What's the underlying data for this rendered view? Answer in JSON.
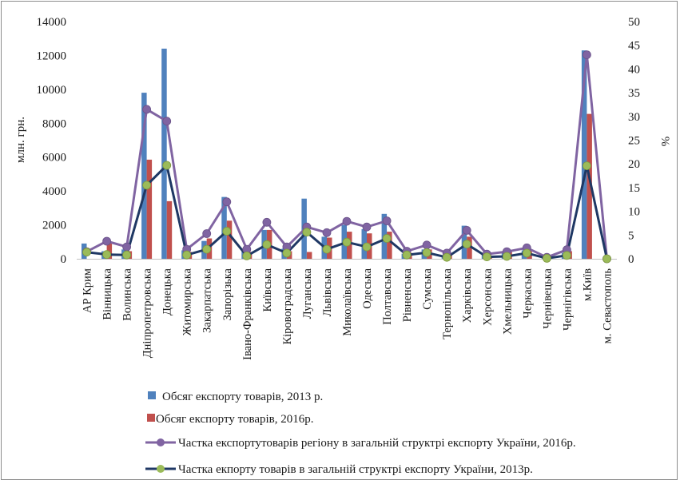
{
  "chart_data": {
    "type": "bar",
    "categories": [
      "АР Крим",
      "Вінницька",
      "Волинська",
      "Дніпропетровська",
      "Донецька",
      "Житомирська",
      "Закарпатська",
      "Запорізька",
      "Івано-Франківська",
      "Київська",
      "Кіровоградська",
      "Луганська",
      "Львівська",
      "Миколаївська",
      "Одеська",
      "Полтавська",
      "Рівненська",
      "Сумська",
      "Тернопільська",
      "Харківська",
      "Херсонська",
      "Хмельницька",
      "Черкаська",
      "Чернівецька",
      "Чернігівська",
      "м.Київ",
      "м. Севастополь"
    ],
    "series": [
      {
        "name": "Обсяг експорту товарів, 2013 р.",
        "kind": "bar",
        "axis": "left",
        "color": "#4f81bd",
        "values": [
          900,
          450,
          550,
          9800,
          12400,
          500,
          1050,
          3650,
          500,
          1700,
          600,
          3550,
          1300,
          2000,
          1750,
          2650,
          300,
          550,
          200,
          1950,
          250,
          450,
          500,
          150,
          350,
          12300,
          0
        ]
      },
      {
        "name": "Обсяг експорту товарів, 2016р.",
        "kind": "bar",
        "axis": "left",
        "color": "#c0504d",
        "values": [
          0,
          900,
          450,
          5850,
          3400,
          400,
          1200,
          2250,
          400,
          1700,
          450,
          400,
          1250,
          1600,
          1500,
          1600,
          350,
          550,
          300,
          1300,
          200,
          400,
          500,
          100,
          450,
          8550,
          0
        ]
      },
      {
        "name": "Частка експортутоварів регіону в загальній структрі експорту України, 2016р.",
        "kind": "line",
        "axis": "right",
        "color": "#8064a2",
        "values": [
          1.5,
          3.7,
          2.5,
          31.5,
          29,
          2,
          5.3,
          12,
          2,
          7.7,
          2.5,
          6.7,
          5.5,
          7.9,
          6.7,
          8,
          1.6,
          2.9,
          1.2,
          6,
          1,
          1.5,
          2.3,
          0.3,
          1.9,
          43,
          0
        ]
      },
      {
        "name": "Частка екпорту товарів в загальній структрі експорту України, 2013р.",
        "kind": "line",
        "axis": "right",
        "color": "#1f3864",
        "marker": "#9bbb59",
        "values": [
          1.4,
          0.9,
          0.8,
          15.5,
          19.7,
          0.8,
          2,
          5.8,
          0.6,
          3,
          1.2,
          5.6,
          2,
          3.5,
          2.5,
          4.3,
          0.8,
          1.3,
          0.3,
          3.1,
          0.4,
          0.5,
          1.2,
          0.1,
          0.7,
          19.6,
          0
        ]
      }
    ],
    "y_left": {
      "label": "млн. грн.",
      "ylim": [
        0,
        14000
      ],
      "ticks": [
        "0",
        "2000",
        "4000",
        "6000",
        "8000",
        "10000",
        "12000",
        "14000"
      ]
    },
    "y_right": {
      "label": "%",
      "ylim": [
        0,
        50
      ],
      "ticks": [
        "0",
        "5",
        "10",
        "15",
        "20",
        "25",
        "30",
        "35",
        "40",
        "45",
        "50"
      ]
    },
    "legend_position": "bottom",
    "grid": false
  }
}
